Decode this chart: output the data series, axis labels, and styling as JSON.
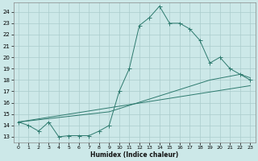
{
  "xlabel": "Humidex (Indice chaleur)",
  "bg_color": "#cce8e8",
  "grid_color": "#aacccc",
  "line_color": "#2d7a6e",
  "xlim": [
    -0.5,
    23.5
  ],
  "ylim": [
    12.5,
    24.8
  ],
  "yticks": [
    13,
    14,
    15,
    16,
    17,
    18,
    19,
    20,
    21,
    22,
    23,
    24
  ],
  "xticks": [
    0,
    1,
    2,
    3,
    4,
    5,
    6,
    7,
    8,
    9,
    10,
    11,
    12,
    13,
    14,
    15,
    16,
    17,
    18,
    19,
    20,
    21,
    22,
    23
  ],
  "curve1_x": [
    0,
    1,
    2,
    3,
    4,
    5,
    6,
    7,
    8,
    9,
    10,
    11,
    12,
    13,
    14,
    15,
    16,
    17,
    18,
    19,
    20,
    21,
    22,
    23
  ],
  "curve1_y": [
    14.3,
    14.0,
    13.5,
    14.3,
    13.0,
    13.1,
    13.1,
    13.1,
    13.5,
    14.0,
    17.0,
    19.0,
    22.8,
    23.5,
    24.5,
    23.0,
    23.0,
    22.5,
    21.5,
    19.5,
    20.0,
    19.0,
    18.5,
    18.0
  ],
  "line2_x": [
    0,
    23
  ],
  "line2_y": [
    14.3,
    17.5
  ],
  "line3_x": [
    0,
    9,
    19,
    22,
    23
  ],
  "line3_y": [
    14.3,
    15.2,
    18.0,
    18.5,
    18.2
  ]
}
